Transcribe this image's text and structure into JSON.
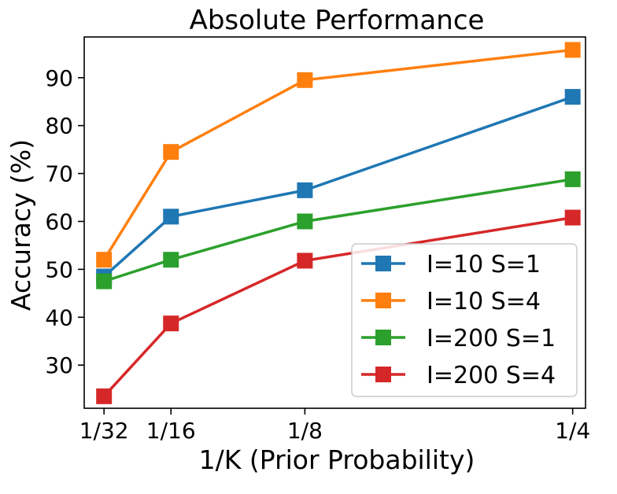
{
  "chart_data": {
    "type": "line",
    "title": "Absolute Performance",
    "xlabel": "1/K (Prior Probability)",
    "ylabel": "Accuracy (%)",
    "x": [
      0.03125,
      0.0625,
      0.125,
      0.25
    ],
    "x_tick_labels": [
      "1/32",
      "1/16",
      "1/8",
      "1/4"
    ],
    "y_ticks": [
      30,
      40,
      50,
      60,
      70,
      80,
      90
    ],
    "xlim": [
      0.022,
      0.256
    ],
    "ylim": [
      21,
      98.5
    ],
    "grid": false,
    "legend_position": "lower-right",
    "series": [
      {
        "name": "I=10 S=1",
        "color": "#1f77b4",
        "marker": "square",
        "values": [
          48.5,
          61.0,
          66.5,
          86.0
        ]
      },
      {
        "name": "I=10 S=4",
        "color": "#ff7f0e",
        "marker": "square",
        "values": [
          52.0,
          74.5,
          89.5,
          95.8
        ]
      },
      {
        "name": "I=200 S=1",
        "color": "#2ca02c",
        "marker": "square",
        "values": [
          47.5,
          52.0,
          60.0,
          68.8
        ]
      },
      {
        "name": "I=200 S=4",
        "color": "#d62728",
        "marker": "square",
        "values": [
          23.5,
          38.7,
          51.8,
          60.8
        ]
      }
    ]
  }
}
